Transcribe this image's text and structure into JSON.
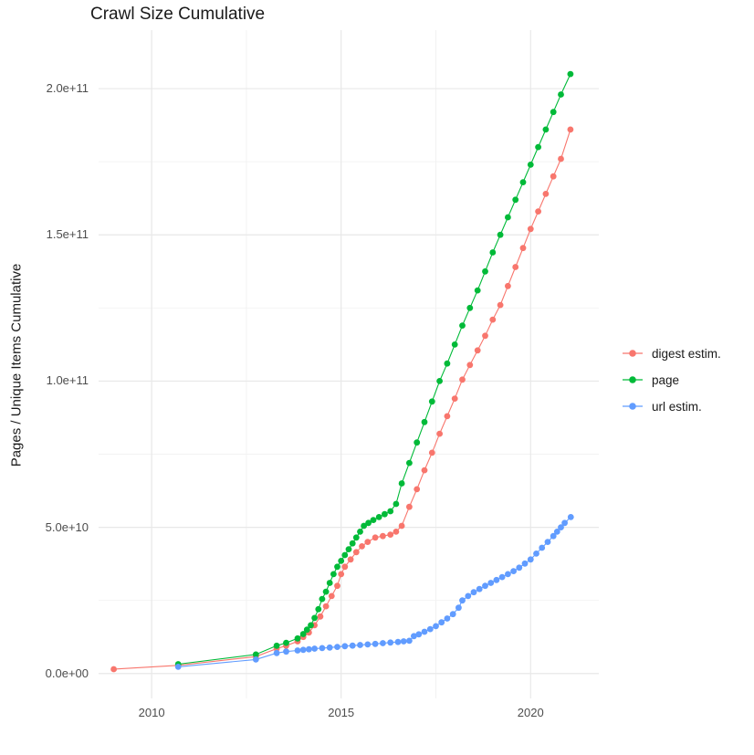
{
  "chart_data": {
    "type": "scatter",
    "title": "Crawl Size Cumulative",
    "xlabel": "",
    "ylabel": "Pages / Unique Items Cumulative",
    "value_unit": "items (values stored in billions, 1 = 1e9)",
    "x_domain": [
      2008.6,
      2021.8
    ],
    "y_domain": [
      -8.5,
      220
    ],
    "grid": true,
    "legend_position": "right",
    "x_ticks": [
      {
        "v": 2010,
        "label": "2010"
      },
      {
        "v": 2015,
        "label": "2015"
      },
      {
        "v": 2020,
        "label": "2020"
      }
    ],
    "x_minor": [
      2012.5,
      2017.5
    ],
    "y_ticks": [
      {
        "v": 0,
        "label": "0.0e+00"
      },
      {
        "v": 50,
        "label": "5.0e+10"
      },
      {
        "v": 100,
        "label": "1.0e+11"
      },
      {
        "v": 150,
        "label": "1.5e+11"
      },
      {
        "v": 200,
        "label": "2.0e+11"
      }
    ],
    "y_minor": [
      25,
      75,
      125,
      175
    ],
    "series": [
      {
        "id": "digest-estim",
        "name": "digest estim.",
        "color": "#F8766D",
        "points": [
          [
            2009.0,
            1.5
          ],
          [
            2010.7,
            2.8
          ],
          [
            2012.75,
            5.8
          ],
          [
            2013.3,
            8.5
          ],
          [
            2013.55,
            9.5
          ],
          [
            2013.85,
            11
          ],
          [
            2014.0,
            12.5
          ],
          [
            2014.15,
            14
          ],
          [
            2014.3,
            16.5
          ],
          [
            2014.45,
            19.5
          ],
          [
            2014.6,
            23
          ],
          [
            2014.75,
            26.5
          ],
          [
            2014.9,
            30
          ],
          [
            2015.0,
            34
          ],
          [
            2015.1,
            36.5
          ],
          [
            2015.25,
            39
          ],
          [
            2015.4,
            41.5
          ],
          [
            2015.55,
            43.5
          ],
          [
            2015.7,
            45
          ],
          [
            2015.9,
            46.5
          ],
          [
            2016.1,
            47
          ],
          [
            2016.3,
            47.5
          ],
          [
            2016.45,
            48.5
          ],
          [
            2016.6,
            50.5
          ],
          [
            2016.8,
            57
          ],
          [
            2017.0,
            63
          ],
          [
            2017.2,
            69.5
          ],
          [
            2017.4,
            75.5
          ],
          [
            2017.6,
            82
          ],
          [
            2017.8,
            88
          ],
          [
            2018.0,
            94
          ],
          [
            2018.2,
            100.5
          ],
          [
            2018.4,
            105.5
          ],
          [
            2018.6,
            110.5
          ],
          [
            2018.8,
            115.5
          ],
          [
            2019.0,
            121
          ],
          [
            2019.2,
            126
          ],
          [
            2019.4,
            132.5
          ],
          [
            2019.6,
            139
          ],
          [
            2019.8,
            145.5
          ],
          [
            2020.0,
            152
          ],
          [
            2020.2,
            158
          ],
          [
            2020.4,
            164
          ],
          [
            2020.6,
            170
          ],
          [
            2020.8,
            176
          ],
          [
            2021.05,
            186
          ]
        ]
      },
      {
        "id": "page",
        "name": "page",
        "color": "#00BA38",
        "points": [
          [
            2010.7,
            3.2
          ],
          [
            2012.75,
            6.5
          ],
          [
            2013.3,
            9.5
          ],
          [
            2013.55,
            10.5
          ],
          [
            2013.85,
            12
          ],
          [
            2014.0,
            13.5
          ],
          [
            2014.1,
            15
          ],
          [
            2014.2,
            16.5
          ],
          [
            2014.3,
            19
          ],
          [
            2014.4,
            22
          ],
          [
            2014.5,
            25.5
          ],
          [
            2014.6,
            28
          ],
          [
            2014.7,
            31
          ],
          [
            2014.8,
            34
          ],
          [
            2014.9,
            36.5
          ],
          [
            2015.0,
            38.5
          ],
          [
            2015.1,
            40.5
          ],
          [
            2015.2,
            42.5
          ],
          [
            2015.3,
            44.5
          ],
          [
            2015.4,
            46.5
          ],
          [
            2015.5,
            48.5
          ],
          [
            2015.6,
            50.5
          ],
          [
            2015.72,
            51.5
          ],
          [
            2015.85,
            52.5
          ],
          [
            2016.0,
            53.5
          ],
          [
            2016.15,
            54.5
          ],
          [
            2016.3,
            55.5
          ],
          [
            2016.45,
            58
          ],
          [
            2016.6,
            65
          ],
          [
            2016.8,
            72
          ],
          [
            2017.0,
            79
          ],
          [
            2017.2,
            86
          ],
          [
            2017.4,
            93
          ],
          [
            2017.6,
            100
          ],
          [
            2017.8,
            106
          ],
          [
            2018.0,
            112.5
          ],
          [
            2018.2,
            119
          ],
          [
            2018.4,
            125
          ],
          [
            2018.6,
            131
          ],
          [
            2018.8,
            137.5
          ],
          [
            2019.0,
            144
          ],
          [
            2019.2,
            150
          ],
          [
            2019.4,
            156
          ],
          [
            2019.6,
            162
          ],
          [
            2019.8,
            168
          ],
          [
            2020.0,
            174
          ],
          [
            2020.2,
            180
          ],
          [
            2020.4,
            186
          ],
          [
            2020.6,
            192
          ],
          [
            2020.8,
            198
          ],
          [
            2021.05,
            205
          ]
        ]
      },
      {
        "id": "url-estim",
        "name": "url estim.",
        "color": "#619CFF",
        "points": [
          [
            2010.7,
            2.3
          ],
          [
            2012.75,
            4.8
          ],
          [
            2013.3,
            7
          ],
          [
            2013.55,
            7.5
          ],
          [
            2013.85,
            7.9
          ],
          [
            2014.0,
            8.1
          ],
          [
            2014.15,
            8.3
          ],
          [
            2014.3,
            8.5
          ],
          [
            2014.5,
            8.7
          ],
          [
            2014.7,
            8.9
          ],
          [
            2014.9,
            9.1
          ],
          [
            2015.1,
            9.35
          ],
          [
            2015.3,
            9.55
          ],
          [
            2015.5,
            9.75
          ],
          [
            2015.7,
            9.95
          ],
          [
            2015.9,
            10.15
          ],
          [
            2016.1,
            10.4
          ],
          [
            2016.3,
            10.6
          ],
          [
            2016.5,
            10.8
          ],
          [
            2016.65,
            11.0
          ],
          [
            2016.8,
            11.2
          ],
          [
            2016.92,
            12.8
          ],
          [
            2017.05,
            13.4
          ],
          [
            2017.2,
            14.3
          ],
          [
            2017.35,
            15.2
          ],
          [
            2017.5,
            16.2
          ],
          [
            2017.65,
            17.5
          ],
          [
            2017.8,
            18.8
          ],
          [
            2017.95,
            20.3
          ],
          [
            2018.1,
            22.5
          ],
          [
            2018.2,
            25
          ],
          [
            2018.35,
            26.5
          ],
          [
            2018.5,
            27.8
          ],
          [
            2018.65,
            28.9
          ],
          [
            2018.8,
            30
          ],
          [
            2018.95,
            31
          ],
          [
            2019.1,
            32
          ],
          [
            2019.25,
            33
          ],
          [
            2019.4,
            34
          ],
          [
            2019.55,
            35
          ],
          [
            2019.7,
            36.2
          ],
          [
            2019.85,
            37.6
          ],
          [
            2020.0,
            39
          ],
          [
            2020.15,
            41
          ],
          [
            2020.3,
            43
          ],
          [
            2020.45,
            45
          ],
          [
            2020.6,
            47
          ],
          [
            2020.7,
            48.5
          ],
          [
            2020.8,
            50
          ],
          [
            2020.9,
            51.5
          ],
          [
            2021.06,
            53.5
          ]
        ]
      }
    ],
    "colors": {
      "grid_major": "#e8e8e8",
      "grid_minor": "#f2f2f2",
      "tick_text": "#4d4d4d",
      "title_text": "#1a1a1a"
    }
  }
}
